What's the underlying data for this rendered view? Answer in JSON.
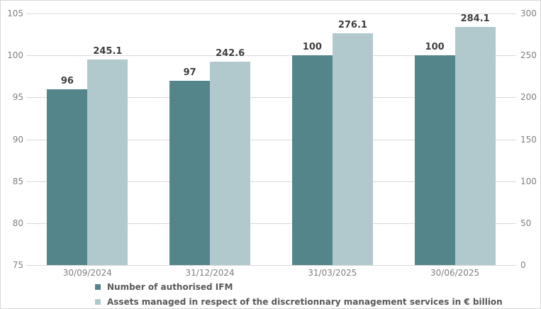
{
  "chart_data": {
    "type": "bar",
    "title": "",
    "categories": [
      "30/09/2024",
      "31/12/2024",
      "31/03/2025",
      "30/06/2025"
    ],
    "series": [
      {
        "name": "Number of authorised IFM",
        "axis": "left",
        "color": "#54858A",
        "values": [
          96,
          97,
          100,
          100
        ]
      },
      {
        "name": "Assets managed in respect of the discretionnary management services in € billion",
        "axis": "right",
        "color": "#B1C9CD",
        "values": [
          245.1,
          242.6,
          276.1,
          284.1
        ]
      }
    ],
    "left_axis": {
      "min": 75,
      "max": 105,
      "ticks": [
        105,
        100,
        95,
        90,
        85,
        80,
        75
      ]
    },
    "right_axis": {
      "min": 0,
      "max": 300,
      "ticks": [
        300,
        250,
        200,
        150,
        100,
        50,
        0
      ]
    },
    "grid": true,
    "legend_position": "bottom-left",
    "styles": {
      "gridline_color": "#d9d9d9",
      "axis_text_color": "#808080",
      "value_label_color": "#3f3f3f",
      "legend_text_color": "#595959",
      "border_color": "#d7d7d7",
      "background": "#ffffff"
    }
  }
}
